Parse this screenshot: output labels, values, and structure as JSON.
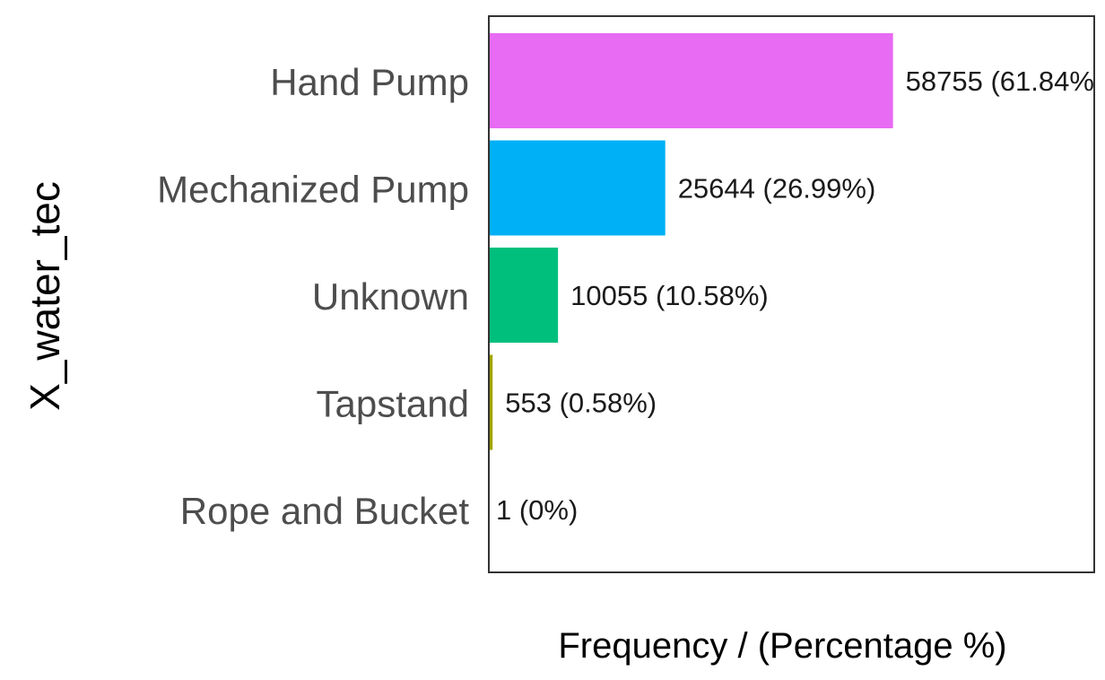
{
  "chart_data": {
    "type": "bar",
    "orientation": "horizontal",
    "title": "",
    "xlabel": "Frequency / (Percentage %)",
    "ylabel": "X_water_tec",
    "categories": [
      "Hand Pump",
      "Mechanized Pump",
      "Unknown",
      "Tapstand",
      "Rope and Bucket"
    ],
    "values": [
      58755,
      25644,
      10055,
      553,
      1
    ],
    "labels": [
      "58755 (61.84%)",
      "25644 (26.99%)",
      "10055 (10.58%)",
      "553 (0.58%)",
      "1 (0%)"
    ],
    "colors": [
      "#E76BF3",
      "#00B0F6",
      "#00BF7D",
      "#A3A500",
      "#F8766D"
    ],
    "xlim": [
      0,
      88000
    ],
    "grid": false,
    "legend": "none"
  }
}
